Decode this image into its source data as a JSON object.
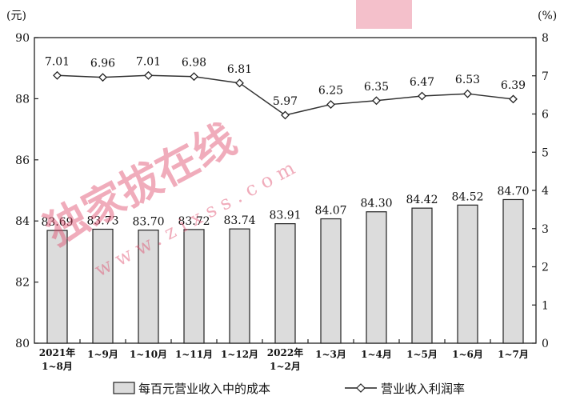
{
  "chart_data": {
    "type": "bar",
    "title": "",
    "left_axis": {
      "unit": "(元)",
      "ylim": [
        80,
        90
      ],
      "ticks": [
        "80",
        "82",
        "84",
        "86",
        "88",
        "90"
      ]
    },
    "right_axis": {
      "unit": "(%)",
      "ylim": [
        0,
        8
      ],
      "ticks": [
        "0",
        "1",
        "2",
        "3",
        "4",
        "5",
        "6",
        "7",
        "8"
      ]
    },
    "categories": [
      [
        "2021年",
        "1~8月"
      ],
      [
        "1~9月"
      ],
      [
        "1~10月"
      ],
      [
        "1~11月"
      ],
      [
        "1~12月"
      ],
      [
        "2022年",
        "1~2月"
      ],
      [
        "1~3月"
      ],
      [
        "1~4月"
      ],
      [
        "1~5月"
      ],
      [
        "1~6月"
      ],
      [
        "1~7月"
      ]
    ],
    "series": [
      {
        "name": "每百元营业收入中的成本",
        "type": "bar",
        "axis": "left",
        "color": "#dcdcdc",
        "values": [
          83.69,
          83.73,
          83.7,
          83.72,
          83.74,
          83.91,
          84.07,
          84.3,
          84.42,
          84.52,
          84.7
        ],
        "labels": [
          "83.69",
          "83.73",
          "83.70",
          "83.72",
          "83.74",
          "83.91",
          "84.07",
          "84.30",
          "84.42",
          "84.52",
          "84.70"
        ]
      },
      {
        "name": "营业收入利润率",
        "type": "line",
        "axis": "right",
        "color": "#333333",
        "values": [
          7.01,
          6.96,
          7.01,
          6.98,
          6.81,
          5.97,
          6.25,
          6.35,
          6.47,
          6.53,
          6.39
        ],
        "labels": [
          "7.01",
          "6.96",
          "7.01",
          "6.98",
          "6.81",
          "5.97",
          "6.25",
          "6.35",
          "6.47",
          "6.53",
          "6.39"
        ]
      }
    ],
    "legend": {
      "placement": "bottom"
    },
    "grid": false
  },
  "watermark": {
    "main": "独家拔在线",
    "sub": "www.zixss.com",
    "color": "#e04a6a"
  }
}
